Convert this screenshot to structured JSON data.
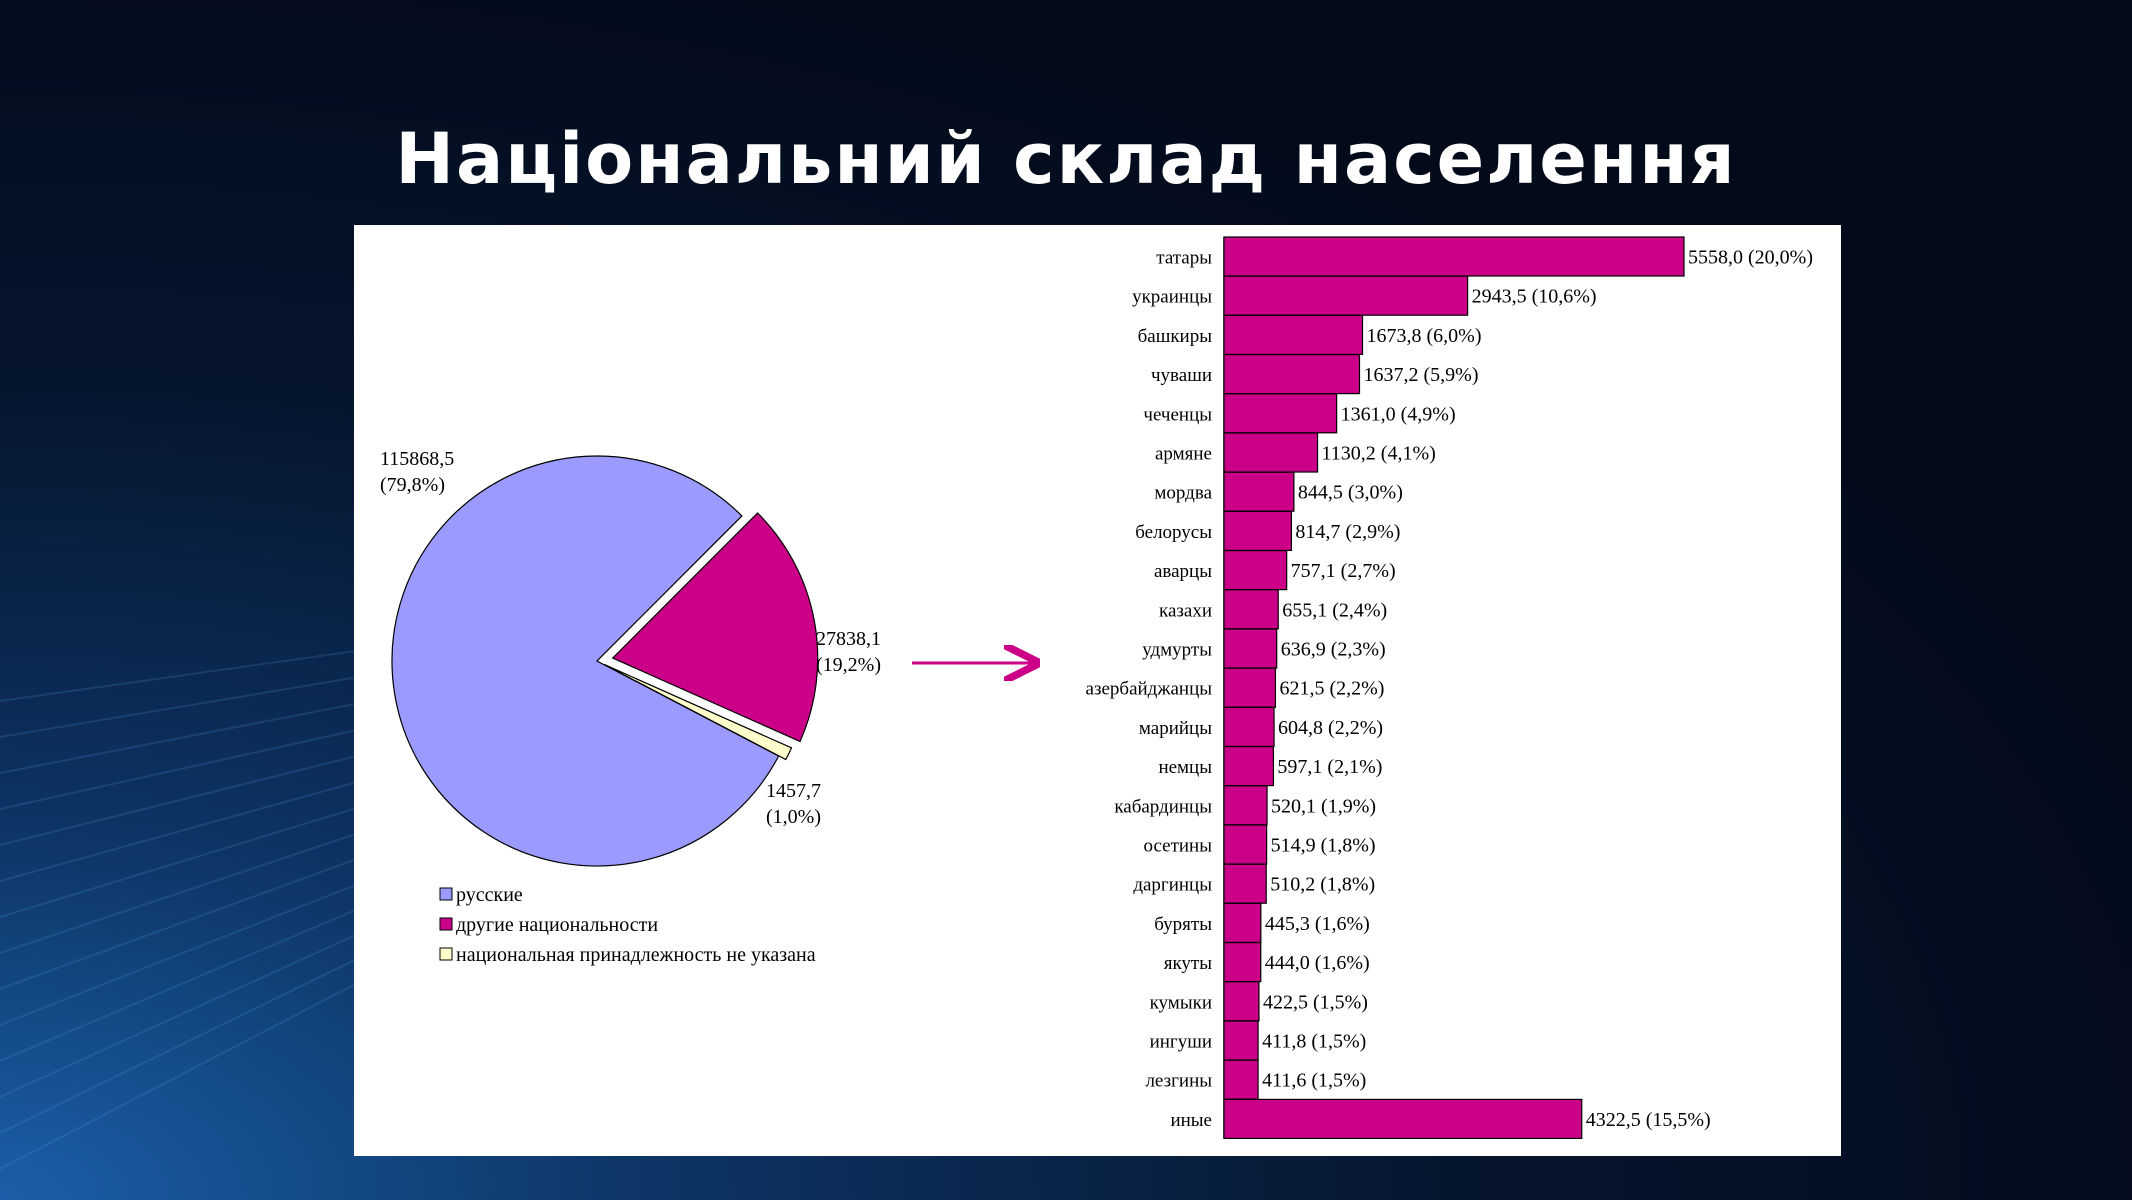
{
  "slide": {
    "title": "Національний склад населення"
  },
  "chart_data": [
    {
      "type": "pie",
      "categories": [
        "русские",
        "другие национальности",
        "национальная принадлежность не указана"
      ],
      "values": [
        115868.5,
        27838.1,
        1457.7
      ],
      "percents": [
        79.8,
        19.2,
        1.0
      ],
      "labels": [
        "115868,5\n(79,8%)",
        "27838,1\n(19,2%)",
        "1457,7\n(1,0%)"
      ],
      "colors": [
        "#9b9bff",
        "#cc0088",
        "#ffffcc"
      ],
      "exploded": [
        "другие национальности"
      ],
      "legend": "bottom"
    },
    {
      "type": "bar",
      "orientation": "horizontal",
      "categories": [
        "татары",
        "украинцы",
        "башкиры",
        "чуваши",
        "чеченцы",
        "армяне",
        "мордва",
        "белорусы",
        "аварцы",
        "казахи",
        "удмурты",
        "азербайджанцы",
        "марийцы",
        "немцы",
        "кабардинцы",
        "осетины",
        "даргинцы",
        "буряты",
        "якуты",
        "кумыки",
        "ингуши",
        "лезгины",
        "иные"
      ],
      "values": [
        5558.0,
        2943.5,
        1673.8,
        1637.2,
        1361.0,
        1130.2,
        844.5,
        814.7,
        757.1,
        655.1,
        636.9,
        621.5,
        604.8,
        597.1,
        520.1,
        514.9,
        510.2,
        445.3,
        444.0,
        422.5,
        411.8,
        411.6,
        4322.5
      ],
      "data_labels": [
        "5558,0 (20,0%)",
        "2943,5 (10,6%)",
        "1673,8 (6,0%)",
        "1637,2 (5,9%)",
        "1361,0 (4,9%)",
        "1130,2 (4,1%)",
        "844,5 (3,0%)",
        "814,7 (2,9%)",
        "757,1 (2,7%)",
        "655,1 (2,4%)",
        "636,9 (2,3%)",
        "621,5 (2,2%)",
        "604,8 (2,2%)",
        "597,1 (2,1%)",
        "520,1 (1,9%)",
        "514,9 (1,8%)",
        "510,2 (1,8%)",
        "445,3 (1,6%)",
        "444,0 (1,6%)",
        "422,5 (1,5%)",
        "411,8 (1,5%)",
        "411,6 (1,5%)",
        "4322,5 (15,5%)"
      ],
      "color": "#cc0088",
      "grid": false
    }
  ]
}
